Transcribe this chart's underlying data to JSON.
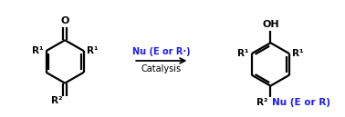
{
  "bg_color": "#ffffff",
  "bond_color": "#000000",
  "arrow_color": "#000000",
  "label_color_black": "#000000",
  "label_color_blue": "#1a1aff",
  "arrow_above": "Nu (E or R·)",
  "arrow_below": "Catalysis",
  "left_top_label": "O",
  "left_r1_left": "R¹",
  "left_r1_right": "R¹",
  "left_r2": "R²",
  "right_oh": "OH",
  "right_r1_left": "R¹",
  "right_r1_right": "R¹",
  "right_r2": "R²",
  "right_nu": "Nu (E or R)",
  "figsize": [
    3.78,
    1.29
  ],
  "dpi": 100
}
